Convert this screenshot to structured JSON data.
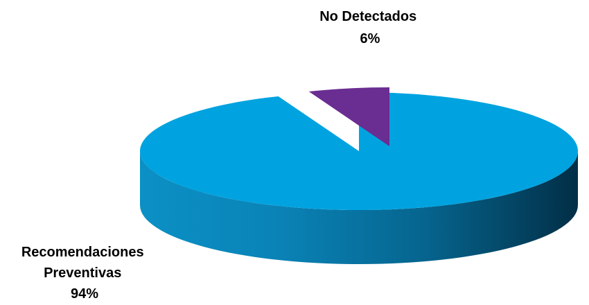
{
  "chart_data": {
    "type": "pie",
    "title": "",
    "three_d": true,
    "exploded_slice": "No Detectados",
    "legend": "none",
    "slices": [
      {
        "label_lines": [
          "Recomendaciones",
          "Preventivas"
        ],
        "percent_label": "94%",
        "value": 94,
        "color": "#00a3e0"
      },
      {
        "label_lines": [
          "No Detectados"
        ],
        "percent_label": "6%",
        "value": 6,
        "color": "#6a2d91"
      }
    ]
  }
}
